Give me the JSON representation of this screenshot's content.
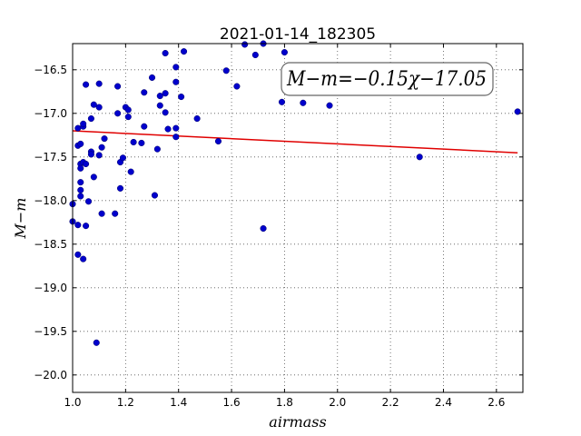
{
  "chart_data": {
    "type": "scatter",
    "title": "2021-01-14_182305",
    "xlabel": "airmass",
    "ylabel": "M−m",
    "xlim": [
      1.0,
      2.7
    ],
    "ylim": [
      -20.2,
      -16.2
    ],
    "y_inverted": true,
    "grid": true,
    "x_ticks": [
      1.0,
      1.2,
      1.4,
      1.6,
      1.8,
      2.0,
      2.2,
      2.4,
      2.6
    ],
    "x_tick_labels": [
      "1.0",
      "1.2",
      "1.4",
      "1.6",
      "1.8",
      "2.0",
      "2.2",
      "2.4",
      "2.6"
    ],
    "y_ticks": [
      -16.5,
      -17.0,
      -17.5,
      -18.0,
      -18.5,
      -19.0,
      -19.5,
      -20.0
    ],
    "y_tick_labels": [
      "−16.5",
      "−17.0",
      "−17.5",
      "−18.0",
      "−18.5",
      "−19.0",
      "−19.5",
      "−20.0"
    ],
    "marker_color": "#0000cc",
    "fit_color": "#e00000",
    "fit": {
      "slope": -0.15,
      "intercept": -17.05,
      "x_range": [
        1.0,
        2.68
      ]
    },
    "annotation": "M−m=−0.15χ−17.05",
    "points": [
      [
        1.0,
        -18.04
      ],
      [
        1.0,
        -18.24
      ],
      [
        1.02,
        -17.17
      ],
      [
        1.02,
        -17.37
      ],
      [
        1.02,
        -18.62
      ],
      [
        1.02,
        -18.28
      ],
      [
        1.03,
        -17.35
      ],
      [
        1.03,
        -17.58
      ],
      [
        1.03,
        -17.63
      ],
      [
        1.03,
        -17.79
      ],
      [
        1.03,
        -17.95
      ],
      [
        1.03,
        -17.88
      ],
      [
        1.04,
        -17.15
      ],
      [
        1.04,
        -17.12
      ],
      [
        1.04,
        -17.56
      ],
      [
        1.04,
        -18.67
      ],
      [
        1.05,
        -16.67
      ],
      [
        1.05,
        -17.58
      ],
      [
        1.05,
        -18.29
      ],
      [
        1.06,
        -18.01
      ],
      [
        1.07,
        -17.44
      ],
      [
        1.07,
        -17.47
      ],
      [
        1.07,
        -17.06
      ],
      [
        1.08,
        -16.9
      ],
      [
        1.08,
        -17.73
      ],
      [
        1.09,
        -19.63
      ],
      [
        1.1,
        -16.93
      ],
      [
        1.1,
        -17.48
      ],
      [
        1.1,
        -16.66
      ],
      [
        1.11,
        -18.15
      ],
      [
        1.11,
        -17.39
      ],
      [
        1.12,
        -17.29
      ],
      [
        1.16,
        -18.15
      ],
      [
        1.17,
        -16.69
      ],
      [
        1.17,
        -17.0
      ],
      [
        1.18,
        -17.86
      ],
      [
        1.18,
        -17.56
      ],
      [
        1.19,
        -17.51
      ],
      [
        1.2,
        -16.93
      ],
      [
        1.21,
        -16.96
      ],
      [
        1.21,
        -17.04
      ],
      [
        1.22,
        -17.67
      ],
      [
        1.23,
        -17.33
      ],
      [
        1.26,
        -17.34
      ],
      [
        1.27,
        -17.15
      ],
      [
        1.27,
        -16.76
      ],
      [
        1.3,
        -16.59
      ],
      [
        1.31,
        -17.94
      ],
      [
        1.32,
        -17.41
      ],
      [
        1.33,
        -16.8
      ],
      [
        1.33,
        -16.91
      ],
      [
        1.35,
        -16.31
      ],
      [
        1.35,
        -16.77
      ],
      [
        1.35,
        -16.99
      ],
      [
        1.36,
        -17.18
      ],
      [
        1.39,
        -16.47
      ],
      [
        1.39,
        -16.64
      ],
      [
        1.39,
        -17.17
      ],
      [
        1.39,
        -17.27
      ],
      [
        1.41,
        -16.81
      ],
      [
        1.42,
        -16.29
      ],
      [
        1.47,
        -17.06
      ],
      [
        1.55,
        -17.32
      ],
      [
        1.58,
        -16.51
      ],
      [
        1.62,
        -16.69
      ],
      [
        1.65,
        -16.21
      ],
      [
        1.69,
        -16.33
      ],
      [
        1.72,
        -16.2
      ],
      [
        1.72,
        -18.32
      ],
      [
        1.79,
        -16.87
      ],
      [
        1.8,
        -16.3
      ],
      [
        1.87,
        -16.88
      ],
      [
        1.97,
        -16.91
      ],
      [
        2.31,
        -17.5
      ],
      [
        2.68,
        -16.98
      ]
    ]
  }
}
